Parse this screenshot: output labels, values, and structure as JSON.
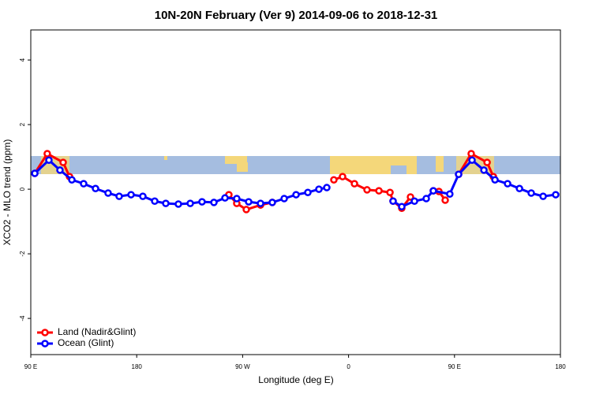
{
  "chart_data": {
    "type": "line",
    "title": "10N-20N February (Ver 9)   2014-09-06 to 2018-12-31",
    "x_label": "Longitude (deg E)",
    "y_label": "XCO2 - MLO trend (ppm)",
    "xlim": [
      90,
      540
    ],
    "xticks": [
      {
        "value": 90,
        "label": "90 E"
      },
      180,
      {
        "value": 270,
        "label": "90 W"
      },
      {
        "value": 360,
        "label": "0"
      },
      {
        "value": 450,
        "label": "90 E"
      },
      {
        "value": 540,
        "label": "180"
      }
    ],
    "ylim": [
      -5.12,
      4.93
    ],
    "yticks": [
      -4,
      -2,
      0,
      2,
      4
    ],
    "legend": "bottom-left",
    "series": [
      {
        "name": "Land (Nadir&Glint)",
        "color": "#ff0000",
        "x": [
          93.4,
          104,
          117.5,
          122.9,
          200,
          258.3,
          265,
          273.1,
          285.2,
          295.2,
          320,
          347.5,
          354.9,
          365,
          375.7,
          385.8,
          395.2,
          397.8,
          405.2,
          412.6,
          425,
          432,
          436.8,
          442.1,
          448,
          453.5,
          464.2,
          477.7,
          483
        ],
        "values": [
          0.49,
          1.1,
          0.83,
          0.39,
          null,
          -0.17,
          -0.44,
          -0.63,
          -0.49,
          -0.41,
          null,
          0.29,
          0.39,
          0.17,
          -0.02,
          -0.05,
          -0.1,
          -0.37,
          -0.59,
          -0.24,
          null,
          -0.05,
          -0.07,
          -0.34,
          null,
          0.46,
          1.1,
          0.83,
          0.39
        ]
      },
      {
        "name": "Ocean (Glint)",
        "color": "#0000ff",
        "x": [
          93.4,
          105.4,
          114.8,
          124.9,
          134.9,
          145,
          155.7,
          165.1,
          175.2,
          185.2,
          195.3,
          204.7,
          215.4,
          225.5,
          235.5,
          245.6,
          255,
          265,
          275.1,
          285.2,
          295.2,
          305.3,
          315.4,
          325.4,
          334.8,
          341.5,
          370,
          397.8,
          405.2,
          416,
          426,
          432,
          446,
          453.5,
          464.9,
          475,
          484.4,
          495.1,
          505.2,
          515.2,
          525.3,
          536
        ],
        "values": [
          0.49,
          0.9,
          0.59,
          0.29,
          0.17,
          0.02,
          -0.12,
          -0.22,
          -0.17,
          -0.22,
          -0.37,
          -0.44,
          -0.46,
          -0.44,
          -0.39,
          -0.41,
          -0.27,
          -0.29,
          -0.39,
          -0.44,
          -0.41,
          -0.29,
          -0.17,
          -0.1,
          0,
          0.05,
          null,
          -0.37,
          -0.54,
          -0.37,
          -0.29,
          -0.05,
          -0.15,
          0.46,
          0.9,
          0.59,
          0.29,
          0.17,
          0.02,
          -0.12,
          -0.22,
          -0.17
        ]
      }
    ]
  }
}
